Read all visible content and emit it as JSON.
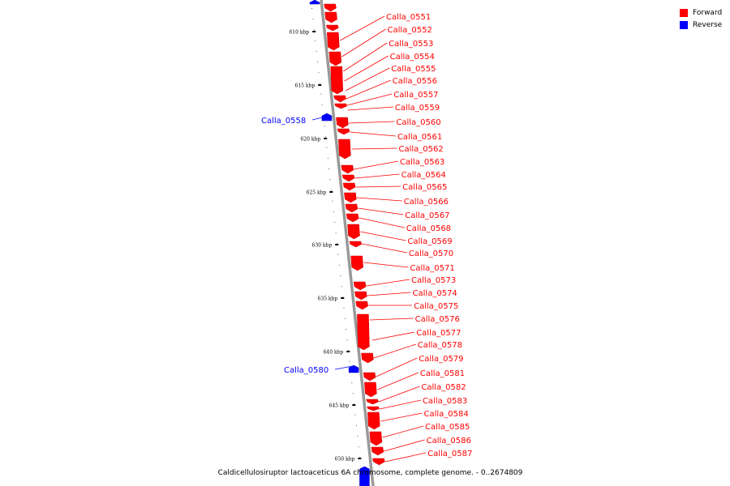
{
  "legend": {
    "items": [
      {
        "label": "Forward",
        "color": "#ff0000"
      },
      {
        "label": "Reverse",
        "color": "#0000ff"
      }
    ]
  },
  "caption": "Caldicellulosiruptor lactoaceticus 6A chromosome, complete genome. - 0..2674809",
  "scale_ticks": [
    "610 kbp",
    "615 kbp",
    "620 kbp",
    "625 kbp",
    "630 kbp",
    "635 kbp",
    "640 kbp",
    "645 kbp",
    "650 kbp"
  ],
  "forward_genes": [
    "Calla_0551",
    "Calla_0552",
    "Calla_0553",
    "Calla_0554",
    "Calla_0555",
    "Calla_0556",
    "Calla_0557",
    "Calla_0559",
    "Calla_0560",
    "Calla_0561",
    "Calla_0562",
    "Calla_0563",
    "Calla_0564",
    "Calla_0565",
    "Calla_0566",
    "Calla_0567",
    "Calla_0568",
    "Calla_0569",
    "Calla_0570",
    "Calla_0571",
    "Calla_0573",
    "Calla_0574",
    "Calla_0575",
    "Calla_0576",
    "Calla_0577",
    "Calla_0578",
    "Calla_0579",
    "Calla_0581",
    "Calla_0582",
    "Calla_0583",
    "Calla_0584",
    "Calla_0585",
    "Calla_0586",
    "Calla_0587"
  ],
  "reverse_genes": [
    "Calla_0558",
    "Calla_0580"
  ],
  "colors": {
    "forward": "#ff0000",
    "reverse": "#0000ff",
    "backbone": "#999999"
  }
}
